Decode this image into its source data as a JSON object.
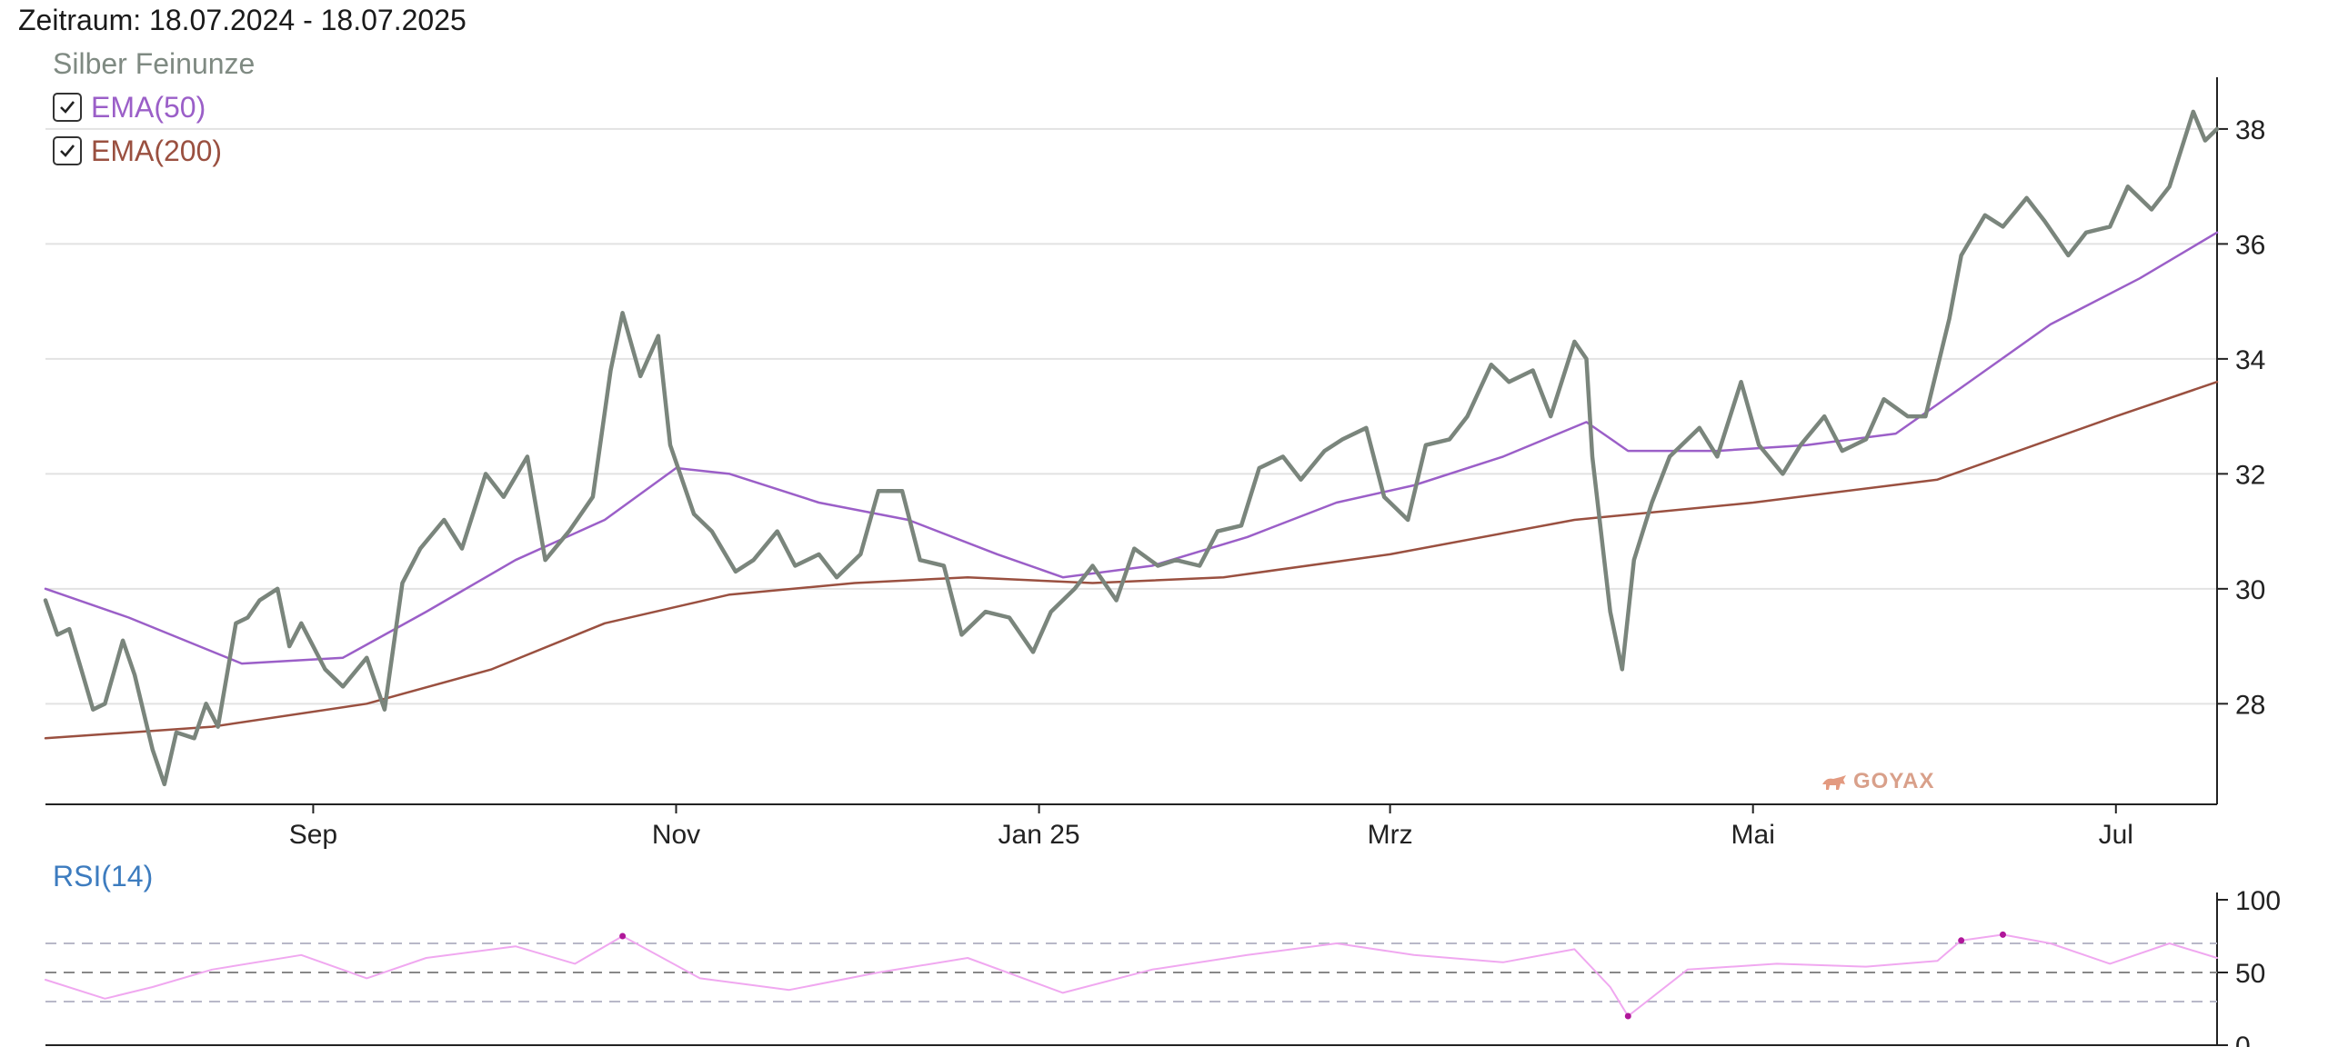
{
  "header": {
    "period": "Zeitraum: 18.07.2024 - 18.07.2025"
  },
  "legend": {
    "series_title": "Silber Feinunze",
    "items": [
      {
        "label": "EMA(50)",
        "checked": true,
        "color": "#9b5fc8"
      },
      {
        "label": "EMA(200)",
        "checked": true,
        "color": "#9a5040"
      }
    ]
  },
  "rsi": {
    "title": "RSI(14)"
  },
  "watermark": {
    "text": "GOYAX"
  },
  "colors": {
    "price": "#7a857c",
    "ema50": "#9b5fc8",
    "ema200": "#9a5040",
    "rsi": "#f0a8f0",
    "rsi_extreme": "#b0169a",
    "grid": "#e2e2e2"
  },
  "chart_data": [
    {
      "type": "line",
      "title": "",
      "x_range": [
        "2024-07-18",
        "2025-07-18"
      ],
      "x_ticks": [
        {
          "date": "2024-09-01",
          "label": "Sep"
        },
        {
          "date": "2024-11-01",
          "label": "Nov"
        },
        {
          "date": "2025-01-01",
          "label": "Jan 25"
        },
        {
          "date": "2025-03-01",
          "label": "Mrz"
        },
        {
          "date": "2025-05-01",
          "label": "Mai"
        },
        {
          "date": "2025-07-01",
          "label": "Jul"
        }
      ],
      "ylim": [
        26.25,
        38.9
      ],
      "y_ticks": [
        28,
        30,
        32,
        34,
        36,
        38
      ],
      "y_axis_position": "right",
      "grid": true,
      "series": [
        {
          "name": "Silber Feinunze",
          "x": [
            "2024-07-18",
            "2024-07-20",
            "2024-07-22",
            "2024-07-24",
            "2024-07-26",
            "2024-07-28",
            "2024-07-31",
            "2024-08-02",
            "2024-08-05",
            "2024-08-07",
            "2024-08-09",
            "2024-08-12",
            "2024-08-14",
            "2024-08-16",
            "2024-08-19",
            "2024-08-21",
            "2024-08-23",
            "2024-08-26",
            "2024-08-28",
            "2024-08-30",
            "2024-09-03",
            "2024-09-06",
            "2024-09-10",
            "2024-09-13",
            "2024-09-16",
            "2024-09-19",
            "2024-09-23",
            "2024-09-26",
            "2024-09-30",
            "2024-10-03",
            "2024-10-07",
            "2024-10-10",
            "2024-10-14",
            "2024-10-18",
            "2024-10-21",
            "2024-10-23",
            "2024-10-26",
            "2024-10-29",
            "2024-10-31",
            "2024-11-04",
            "2024-11-07",
            "2024-11-11",
            "2024-11-14",
            "2024-11-18",
            "2024-11-21",
            "2024-11-25",
            "2024-11-28",
            "2024-12-02",
            "2024-12-05",
            "2024-12-09",
            "2024-12-12",
            "2024-12-16",
            "2024-12-19",
            "2024-12-23",
            "2024-12-27",
            "2024-12-31",
            "2025-01-03",
            "2025-01-07",
            "2025-01-10",
            "2025-01-14",
            "2025-01-17",
            "2025-01-21",
            "2025-01-24",
            "2025-01-28",
            "2025-01-31",
            "2025-02-04",
            "2025-02-07",
            "2025-02-11",
            "2025-02-14",
            "2025-02-18",
            "2025-02-21",
            "2025-02-25",
            "2025-02-28",
            "2025-03-04",
            "2025-03-07",
            "2025-03-11",
            "2025-03-14",
            "2025-03-18",
            "2025-03-21",
            "2025-03-25",
            "2025-03-28",
            "2025-04-01",
            "2025-04-03",
            "2025-04-04",
            "2025-04-07",
            "2025-04-09",
            "2025-04-11",
            "2025-04-14",
            "2025-04-17",
            "2025-04-22",
            "2025-04-25",
            "2025-04-29",
            "2025-05-02",
            "2025-05-06",
            "2025-05-09",
            "2025-05-13",
            "2025-05-16",
            "2025-05-20",
            "2025-05-23",
            "2025-05-27",
            "2025-05-30",
            "2025-06-03",
            "2025-06-05",
            "2025-06-09",
            "2025-06-12",
            "2025-06-16",
            "2025-06-19",
            "2025-06-23",
            "2025-06-26",
            "2025-06-30",
            "2025-07-03",
            "2025-07-07",
            "2025-07-10",
            "2025-07-14",
            "2025-07-16",
            "2025-07-18"
          ],
          "values": [
            29.8,
            29.2,
            29.3,
            28.6,
            27.9,
            28.0,
            29.1,
            28.5,
            27.2,
            26.6,
            27.5,
            27.4,
            28.0,
            27.6,
            29.4,
            29.5,
            29.8,
            30.0,
            29.0,
            29.4,
            28.6,
            28.3,
            28.8,
            27.9,
            30.1,
            30.7,
            31.2,
            30.7,
            32.0,
            31.6,
            32.3,
            30.5,
            31.0,
            31.6,
            33.8,
            34.8,
            33.7,
            34.4,
            32.5,
            31.3,
            31.0,
            30.3,
            30.5,
            31.0,
            30.4,
            30.6,
            30.2,
            30.6,
            31.7,
            31.7,
            30.5,
            30.4,
            29.2,
            29.6,
            29.5,
            28.9,
            29.6,
            30.0,
            30.4,
            29.8,
            30.7,
            30.4,
            30.5,
            30.4,
            31.0,
            31.1,
            32.1,
            32.3,
            31.9,
            32.4,
            32.6,
            32.8,
            31.6,
            31.2,
            32.5,
            32.6,
            33.0,
            33.9,
            33.6,
            33.8,
            33.0,
            34.3,
            34.0,
            32.3,
            29.6,
            28.6,
            30.5,
            31.5,
            32.3,
            32.8,
            32.3,
            33.6,
            32.5,
            32.0,
            32.5,
            33.0,
            32.4,
            32.6,
            33.3,
            33.0,
            33.0,
            34.7,
            35.8,
            36.5,
            36.3,
            36.8,
            36.4,
            35.8,
            36.2,
            36.3,
            37.0,
            36.6,
            37.0,
            38.3,
            37.8,
            38.0
          ]
        },
        {
          "name": "EMA(50)",
          "x": [
            "2024-07-18",
            "2024-08-01",
            "2024-08-20",
            "2024-09-06",
            "2024-09-20",
            "2024-10-05",
            "2024-10-20",
            "2024-11-01",
            "2024-11-10",
            "2024-11-25",
            "2024-12-10",
            "2024-12-25",
            "2025-01-05",
            "2025-01-20",
            "2025-02-05",
            "2025-02-20",
            "2025-03-05",
            "2025-03-20",
            "2025-04-03",
            "2025-04-10",
            "2025-04-25",
            "2025-05-10",
            "2025-05-25",
            "2025-06-05",
            "2025-06-20",
            "2025-07-05",
            "2025-07-18"
          ],
          "values": [
            30.0,
            29.5,
            28.7,
            28.8,
            29.6,
            30.5,
            31.2,
            32.1,
            32.0,
            31.5,
            31.2,
            30.6,
            30.2,
            30.4,
            30.9,
            31.5,
            31.8,
            32.3,
            32.9,
            32.4,
            32.4,
            32.5,
            32.7,
            33.5,
            34.6,
            35.4,
            36.2
          ]
        },
        {
          "name": "EMA(200)",
          "x": [
            "2024-07-18",
            "2024-08-15",
            "2024-09-10",
            "2024-10-01",
            "2024-10-20",
            "2024-11-10",
            "2024-12-01",
            "2024-12-20",
            "2025-01-10",
            "2025-02-01",
            "2025-03-01",
            "2025-04-01",
            "2025-05-01",
            "2025-06-01",
            "2025-07-01",
            "2025-07-18"
          ],
          "values": [
            27.4,
            27.6,
            28.0,
            28.6,
            29.4,
            29.9,
            30.1,
            30.2,
            30.1,
            30.2,
            30.6,
            31.2,
            31.5,
            31.9,
            33.0,
            33.6
          ]
        }
      ]
    },
    {
      "type": "line",
      "title": "RSI(14)",
      "ylim": [
        0,
        100
      ],
      "y_ticks": [
        0,
        50,
        100
      ],
      "y_axis_position": "right",
      "reference_lines": [
        30,
        50,
        70
      ],
      "series": [
        {
          "name": "RSI(14)",
          "x": [
            "2024-07-18",
            "2024-07-28",
            "2024-08-05",
            "2024-08-15",
            "2024-08-30",
            "2024-09-10",
            "2024-09-20",
            "2024-10-05",
            "2024-10-15",
            "2024-10-23",
            "2024-11-05",
            "2024-11-20",
            "2024-12-05",
            "2024-12-20",
            "2025-01-05",
            "2025-01-20",
            "2025-02-05",
            "2025-02-20",
            "2025-03-05",
            "2025-03-20",
            "2025-04-01",
            "2025-04-07",
            "2025-04-10",
            "2025-04-20",
            "2025-05-05",
            "2025-05-20",
            "2025-06-01",
            "2025-06-05",
            "2025-06-12",
            "2025-06-20",
            "2025-06-30",
            "2025-07-10",
            "2025-07-18"
          ],
          "values": [
            45,
            32,
            40,
            52,
            62,
            46,
            60,
            68,
            56,
            75,
            46,
            38,
            50,
            60,
            36,
            52,
            62,
            70,
            62,
            57,
            66,
            40,
            20,
            52,
            56,
            54,
            58,
            72,
            76,
            70,
            56,
            70,
            60
          ]
        }
      ]
    }
  ]
}
